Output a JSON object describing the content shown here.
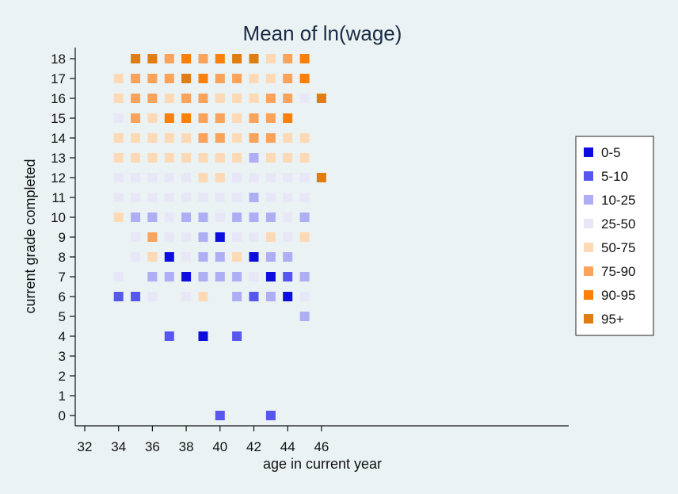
{
  "chart_data": {
    "type": "heatmap",
    "title": "Mean of ln(wage)",
    "xlabel": "age in current year",
    "ylabel": "current grade completed",
    "xlim": [
      31.8,
      46.3
    ],
    "ylim": [
      -0.6,
      18.5
    ],
    "xticks": [
      32,
      34,
      36,
      38,
      40,
      42,
      44,
      46
    ],
    "yticks": [
      0,
      1,
      2,
      3,
      4,
      5,
      6,
      7,
      8,
      9,
      10,
      11,
      12,
      13,
      14,
      15,
      16,
      17,
      18
    ],
    "grid": false,
    "legend": "right",
    "categories": [
      {
        "label": "0-5",
        "color": "#0d0de0"
      },
      {
        "label": "5-10",
        "color": "#5757ee"
      },
      {
        "label": "10-25",
        "color": "#aeaef4"
      },
      {
        "label": "25-50",
        "color": "#e7e7f7"
      },
      {
        "label": "50-75",
        "color": "#fdd9b5"
      },
      {
        "label": "75-90",
        "color": "#fba25b"
      },
      {
        "label": "90-95",
        "color": "#fb7f08"
      },
      {
        "label": "95+",
        "color": "#e07d12"
      }
    ],
    "points": [
      [
        34,
        17,
        4
      ],
      [
        34,
        16,
        4
      ],
      [
        34,
        15,
        3
      ],
      [
        34,
        14,
        4
      ],
      [
        34,
        13,
        4
      ],
      [
        34,
        12,
        3
      ],
      [
        34,
        11,
        3
      ],
      [
        34,
        10,
        4
      ],
      [
        34,
        7,
        3
      ],
      [
        34,
        6,
        1
      ],
      [
        35,
        18,
        7
      ],
      [
        35,
        17,
        5
      ],
      [
        35,
        16,
        5
      ],
      [
        35,
        15,
        5
      ],
      [
        35,
        14,
        4
      ],
      [
        35,
        13,
        4
      ],
      [
        35,
        12,
        3
      ],
      [
        35,
        11,
        3
      ],
      [
        35,
        10,
        2
      ],
      [
        35,
        9,
        3
      ],
      [
        35,
        8,
        3
      ],
      [
        35,
        6,
        1
      ],
      [
        36,
        18,
        7
      ],
      [
        36,
        17,
        5
      ],
      [
        36,
        16,
        5
      ],
      [
        36,
        15,
        4
      ],
      [
        36,
        14,
        4
      ],
      [
        36,
        13,
        4
      ],
      [
        36,
        12,
        3
      ],
      [
        36,
        11,
        3
      ],
      [
        36,
        10,
        2
      ],
      [
        36,
        9,
        5
      ],
      [
        36,
        8,
        4
      ],
      [
        36,
        7,
        2
      ],
      [
        36,
        6,
        3
      ],
      [
        37,
        18,
        5
      ],
      [
        37,
        17,
        5
      ],
      [
        37,
        16,
        4
      ],
      [
        37,
        15,
        6
      ],
      [
        37,
        14,
        4
      ],
      [
        37,
        13,
        4
      ],
      [
        37,
        12,
        3
      ],
      [
        37,
        11,
        3
      ],
      [
        37,
        10,
        3
      ],
      [
        37,
        9,
        3
      ],
      [
        37,
        8,
        0
      ],
      [
        37,
        7,
        2
      ],
      [
        37,
        4,
        1
      ],
      [
        38,
        18,
        6
      ],
      [
        38,
        17,
        7
      ],
      [
        38,
        16,
        5
      ],
      [
        38,
        15,
        6
      ],
      [
        38,
        14,
        4
      ],
      [
        38,
        13,
        4
      ],
      [
        38,
        12,
        3
      ],
      [
        38,
        11,
        3
      ],
      [
        38,
        10,
        2
      ],
      [
        38,
        9,
        3
      ],
      [
        38,
        8,
        3
      ],
      [
        38,
        7,
        0
      ],
      [
        38,
        6,
        3
      ],
      [
        39,
        18,
        5
      ],
      [
        39,
        17,
        6
      ],
      [
        39,
        16,
        5
      ],
      [
        39,
        15,
        5
      ],
      [
        39,
        14,
        5
      ],
      [
        39,
        13,
        4
      ],
      [
        39,
        12,
        4
      ],
      [
        39,
        11,
        3
      ],
      [
        39,
        10,
        2
      ],
      [
        39,
        9,
        2
      ],
      [
        39,
        8,
        2
      ],
      [
        39,
        7,
        2
      ],
      [
        39,
        6,
        4
      ],
      [
        39,
        4,
        0
      ],
      [
        40,
        18,
        6
      ],
      [
        40,
        17,
        5
      ],
      [
        40,
        16,
        4
      ],
      [
        40,
        15,
        5
      ],
      [
        40,
        14,
        5
      ],
      [
        40,
        13,
        4
      ],
      [
        40,
        12,
        4
      ],
      [
        40,
        11,
        3
      ],
      [
        40,
        10,
        3
      ],
      [
        40,
        9,
        0
      ],
      [
        40,
        8,
        2
      ],
      [
        40,
        7,
        2
      ],
      [
        40,
        0,
        1
      ],
      [
        41,
        18,
        7
      ],
      [
        41,
        17,
        5
      ],
      [
        41,
        16,
        4
      ],
      [
        41,
        15,
        4
      ],
      [
        41,
        14,
        4
      ],
      [
        41,
        13,
        4
      ],
      [
        41,
        12,
        3
      ],
      [
        41,
        11,
        3
      ],
      [
        41,
        10,
        2
      ],
      [
        41,
        9,
        3
      ],
      [
        41,
        8,
        4
      ],
      [
        41,
        7,
        2
      ],
      [
        41,
        6,
        2
      ],
      [
        41,
        4,
        1
      ],
      [
        42,
        18,
        7
      ],
      [
        42,
        17,
        4
      ],
      [
        42,
        16,
        4
      ],
      [
        42,
        15,
        5
      ],
      [
        42,
        14,
        5
      ],
      [
        42,
        13,
        2
      ],
      [
        42,
        12,
        3
      ],
      [
        42,
        11,
        2
      ],
      [
        42,
        10,
        2
      ],
      [
        42,
        9,
        3
      ],
      [
        42,
        8,
        0
      ],
      [
        42,
        7,
        3
      ],
      [
        42,
        6,
        1
      ],
      [
        43,
        18,
        4
      ],
      [
        43,
        17,
        4
      ],
      [
        43,
        16,
        5
      ],
      [
        43,
        15,
        5
      ],
      [
        43,
        14,
        5
      ],
      [
        43,
        13,
        4
      ],
      [
        43,
        12,
        3
      ],
      [
        43,
        11,
        3
      ],
      [
        43,
        10,
        2
      ],
      [
        43,
        9,
        4
      ],
      [
        43,
        8,
        2
      ],
      [
        43,
        7,
        0
      ],
      [
        43,
        6,
        2
      ],
      [
        43,
        0,
        1
      ],
      [
        44,
        18,
        5
      ],
      [
        44,
        17,
        5
      ],
      [
        44,
        16,
        5
      ],
      [
        44,
        15,
        6
      ],
      [
        44,
        14,
        4
      ],
      [
        44,
        13,
        4
      ],
      [
        44,
        12,
        3
      ],
      [
        44,
        11,
        3
      ],
      [
        44,
        10,
        3
      ],
      [
        44,
        9,
        3
      ],
      [
        44,
        8,
        2
      ],
      [
        44,
        7,
        1
      ],
      [
        44,
        6,
        0
      ],
      [
        45,
        18,
        6
      ],
      [
        45,
        17,
        6
      ],
      [
        45,
        16,
        3
      ],
      [
        45,
        14,
        4
      ],
      [
        45,
        13,
        4
      ],
      [
        45,
        12,
        3
      ],
      [
        45,
        11,
        3
      ],
      [
        45,
        10,
        2
      ],
      [
        45,
        9,
        4
      ],
      [
        45,
        7,
        2
      ],
      [
        45,
        6,
        3
      ],
      [
        45,
        5,
        2
      ],
      [
        46,
        16,
        7
      ],
      [
        46,
        12,
        7
      ]
    ]
  }
}
